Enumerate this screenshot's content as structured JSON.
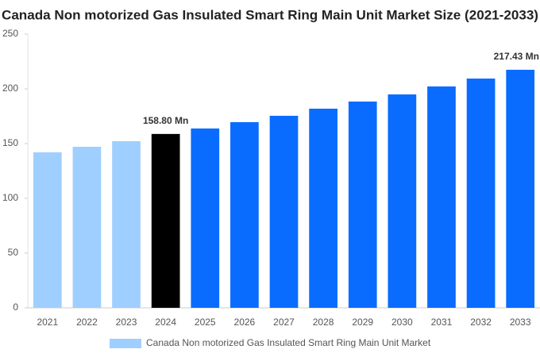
{
  "chart_data": {
    "type": "bar",
    "title": "Canada Non motorized Gas Insulated Smart Ring Main Unit Market Size (2021-2033)",
    "categories": [
      "2021",
      "2022",
      "2023",
      "2024",
      "2025",
      "2026",
      "2027",
      "2028",
      "2029",
      "2030",
      "2031",
      "2032",
      "2033"
    ],
    "series": [
      {
        "name": "Canada Non motorized Gas Insulated Smart Ring Main Unit Market",
        "color": "#9fcfff",
        "colors": [
          "#9fcfff",
          "#9fcfff",
          "#9fcfff",
          "#000000",
          "#0a6cff",
          "#0a6cff",
          "#0a6cff",
          "#0a6cff",
          "#0a6cff",
          "#0a6cff",
          "#0a6cff",
          "#0a6cff",
          "#0a6cff"
        ],
        "values": [
          142.0,
          147.1,
          152.2,
          158.8,
          163.8,
          169.6,
          175.4,
          181.9,
          188.4,
          194.9,
          202.2,
          209.4,
          217.43
        ],
        "value_labels": [
          null,
          null,
          null,
          "158.80 Mn",
          null,
          null,
          null,
          null,
          null,
          null,
          null,
          null,
          "217.43 Mn"
        ]
      }
    ],
    "ylim": [
      0,
      250
    ],
    "yticks": [
      0,
      50,
      100,
      150,
      200,
      250
    ],
    "grid": false,
    "legend": "bottom"
  }
}
